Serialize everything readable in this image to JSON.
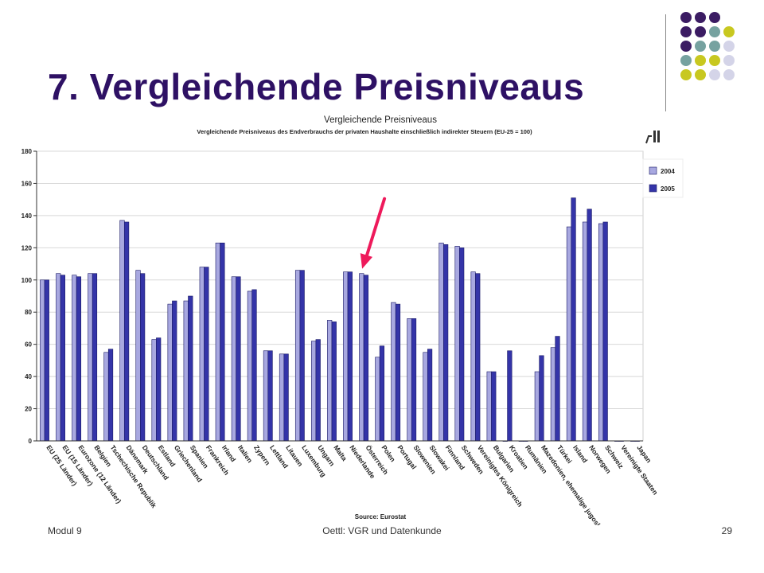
{
  "slide": {
    "title": "7. Vergleichende Preisniveaus",
    "footer_left": "Modul 9",
    "footer_center": "Oettl: VGR und Datenkunde",
    "page_number": "29"
  },
  "decor": {
    "dot_colors": [
      "#3b1c63",
      "#76a2a0",
      "#c8c820",
      "#d4d4e8"
    ]
  },
  "chart_data": {
    "type": "bar",
    "title": "Vergleichende Preisniveaus",
    "subtitle": "Vergleichende Preisniveaus des Endverbrauchs der privaten Haushalte einschließlich indirekter Steuern (EU-25 = 100)",
    "source": "Source: Eurostat",
    "ylim": [
      0,
      180
    ],
    "yticks": [
      0,
      20,
      40,
      60,
      80,
      100,
      120,
      140,
      160,
      180
    ],
    "grid": true,
    "legend_position": "right",
    "highlight_arrow_category": "Österreich",
    "categories": [
      "EU (25 Länder)",
      "EU (15 Länder)",
      "Eurozone (12 Länder)",
      "Belgien",
      "Tschechische Republik",
      "Dänemark",
      "Deutschland",
      "Estland",
      "Griechenland",
      "Spanien",
      "Frankreich",
      "Irland",
      "Italien",
      "Zypern",
      "Lettland",
      "Litauen",
      "Luxemburg",
      "Ungarn",
      "Malta",
      "Niederlande",
      "Österreich",
      "Polen",
      "Portugal",
      "Slowenien",
      "Slowakei",
      "Finnland",
      "Schweden",
      "Vereinigtes Königreich",
      "Bulgarien",
      "Kroatien",
      "Rumänien",
      "Mazedonien, ehemalige jugosl.",
      "Türkei",
      "Island",
      "Norwegen",
      "Schweiz",
      "Vereinigte Staaten",
      "Japan"
    ],
    "series": [
      {
        "name": "2004",
        "color": "#a8a8e0",
        "values": [
          100,
          104,
          103,
          104,
          55,
          137,
          106,
          63,
          85,
          87,
          108,
          123,
          102,
          93,
          56,
          54,
          106,
          62,
          75,
          105,
          104,
          52,
          86,
          76,
          55,
          123,
          121,
          105,
          43,
          0,
          0,
          43,
          58,
          133,
          136,
          135,
          0,
          0
        ]
      },
      {
        "name": "2005",
        "color": "#3434a8",
        "values": [
          100,
          103,
          102,
          104,
          57,
          136,
          104,
          64,
          87,
          90,
          108,
          123,
          102,
          94,
          56,
          54,
          106,
          63,
          74,
          105,
          103,
          59,
          85,
          76,
          57,
          122,
          120,
          104,
          43,
          56,
          0,
          53,
          65,
          151,
          144,
          136,
          0,
          0
        ]
      }
    ]
  }
}
